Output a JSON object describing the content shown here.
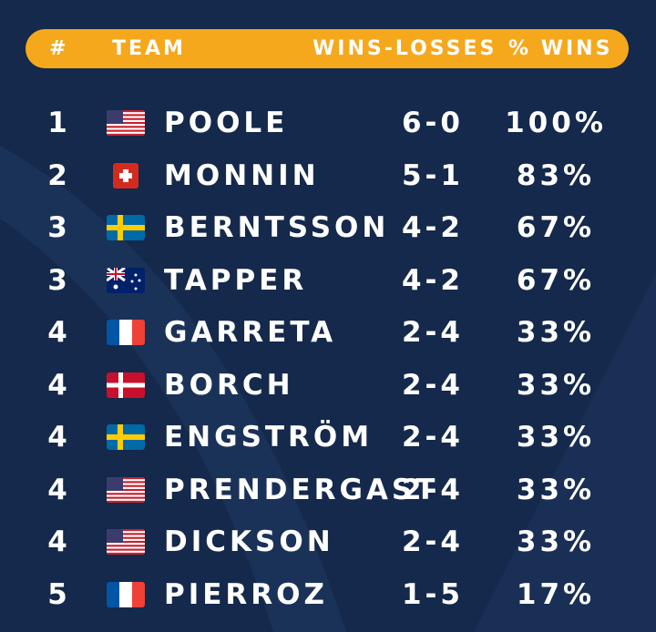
{
  "table": {
    "header": [
      "#",
      "TEAM",
      "WINS-LOSSES",
      "% WINS"
    ],
    "rows": [
      [
        "1",
        "POOLE",
        "6-0",
        "100%"
      ],
      [
        "2",
        "MONNIN",
        "5-1",
        "83%"
      ],
      [
        "3",
        "BERNTSSON",
        "4-2",
        "67%"
      ],
      [
        "3",
        "TAPPER",
        "4-2",
        "67%"
      ],
      [
        "4",
        "GARRETA",
        "2-4",
        "33%"
      ],
      [
        "4",
        "BORCH",
        "2-4",
        "33%"
      ],
      [
        "4",
        "ENGSTRÖM",
        "2-4",
        "33%"
      ],
      [
        "4",
        "PRENDERGAST",
        "2-4",
        "33%"
      ],
      [
        "4",
        "DICKSON",
        "2-4",
        "33%"
      ],
      [
        "5",
        "PIERROZ",
        "1-5",
        "17%"
      ]
    ]
  }
}
